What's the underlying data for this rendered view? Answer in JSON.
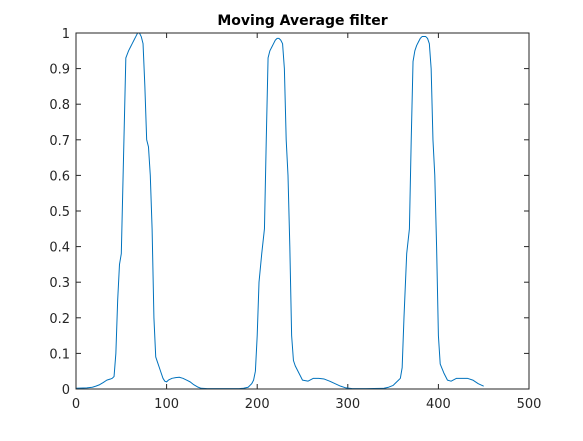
{
  "chart_data": {
    "type": "line",
    "title": "Moving Average filter",
    "xlabel": "",
    "ylabel": "",
    "xlim": [
      0,
      500
    ],
    "ylim": [
      0,
      1
    ],
    "xticks": [
      0,
      100,
      200,
      300,
      400,
      500
    ],
    "yticks": [
      0,
      0.1,
      0.2,
      0.3,
      0.4,
      0.5,
      0.6,
      0.7,
      0.8,
      0.9,
      1
    ],
    "grid": false,
    "legend": "none",
    "series": [
      {
        "color": "#0072BD",
        "x": [
          0,
          12,
          18,
          22,
          26,
          30,
          34,
          38,
          40,
          42,
          44,
          46,
          48,
          50,
          52,
          55,
          58,
          60,
          62,
          64,
          66,
          68,
          70,
          72,
          74,
          76,
          78,
          80,
          82,
          84,
          86,
          88,
          90,
          92,
          94,
          96,
          98,
          100,
          102,
          106,
          110,
          114,
          118,
          122,
          126,
          130,
          134,
          138,
          145,
          160,
          180,
          185,
          190,
          192,
          194,
          196,
          198,
          200,
          202,
          205,
          208,
          210,
          212,
          214,
          216,
          218,
          220,
          222,
          224,
          226,
          228,
          230,
          232,
          234,
          236,
          238,
          240,
          242,
          246,
          250,
          256,
          262,
          268,
          274,
          280,
          286,
          292,
          298,
          305,
          320,
          340,
          345,
          350,
          352,
          354,
          356,
          358,
          360,
          362,
          365,
          368,
          370,
          372,
          374,
          376,
          378,
          380,
          382,
          384,
          386,
          388,
          390,
          392,
          394,
          396,
          398,
          400,
          402,
          406,
          410,
          414,
          420,
          426,
          432,
          438,
          444,
          450
        ],
        "values": [
          0.002,
          0.003,
          0.005,
          0.008,
          0.012,
          0.018,
          0.025,
          0.028,
          0.03,
          0.035,
          0.1,
          0.25,
          0.35,
          0.38,
          0.6,
          0.93,
          0.95,
          0.96,
          0.97,
          0.98,
          0.99,
          1.0,
          1.0,
          0.99,
          0.97,
          0.85,
          0.7,
          0.68,
          0.6,
          0.45,
          0.2,
          0.09,
          0.075,
          0.06,
          0.045,
          0.03,
          0.022,
          0.02,
          0.025,
          0.03,
          0.032,
          0.033,
          0.03,
          0.025,
          0.02,
          0.012,
          0.006,
          0.002,
          0.001,
          0.001,
          0.001,
          0.002,
          0.005,
          0.01,
          0.015,
          0.025,
          0.05,
          0.15,
          0.3,
          0.38,
          0.45,
          0.7,
          0.93,
          0.95,
          0.96,
          0.97,
          0.98,
          0.985,
          0.985,
          0.98,
          0.97,
          0.9,
          0.7,
          0.6,
          0.4,
          0.15,
          0.08,
          0.065,
          0.045,
          0.025,
          0.022,
          0.03,
          0.03,
          0.028,
          0.022,
          0.015,
          0.008,
          0.003,
          0.001,
          0.001,
          0.002,
          0.005,
          0.01,
          0.015,
          0.02,
          0.025,
          0.03,
          0.06,
          0.2,
          0.38,
          0.45,
          0.7,
          0.92,
          0.95,
          0.965,
          0.975,
          0.985,
          0.99,
          0.99,
          0.99,
          0.985,
          0.97,
          0.9,
          0.7,
          0.6,
          0.4,
          0.15,
          0.07,
          0.045,
          0.025,
          0.022,
          0.03,
          0.03,
          0.03,
          0.025,
          0.015,
          0.008
        ]
      }
    ]
  }
}
